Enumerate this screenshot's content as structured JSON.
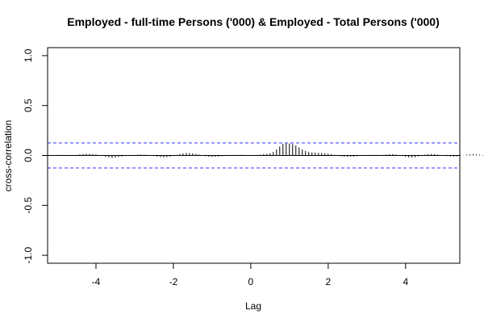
{
  "chart_data": {
    "type": "bar",
    "title": "Employed - full-time Persons ('000) & Employed - Total Persons ('000)",
    "xlabel": "Lag",
    "ylabel": "cross-correlation",
    "xlim": [
      -5.25,
      5.4
    ],
    "ylim": [
      -1.08,
      1.08
    ],
    "xticks": [
      -4,
      -2,
      0,
      2,
      4
    ],
    "xtick_labels": [
      "-4",
      "-2",
      "0",
      "2",
      "4"
    ],
    "yticks": [
      -1.0,
      -0.5,
      0.0,
      0.5,
      1.0
    ],
    "ytick_labels": [
      "-1.0",
      "-0.5",
      "0.0",
      "0.5",
      "1.0"
    ],
    "ci_level": 0.125,
    "ci_color": "#3333ff",
    "bar_color": "#000000",
    "grid": false,
    "lag_step": 0.0833,
    "lag_start": -5.0,
    "values": [
      0.005,
      0.006,
      0.005,
      0.004,
      0.003,
      0.003,
      0.005,
      0.01,
      0.014,
      0.017,
      0.016,
      0.014,
      0.01,
      0.004,
      -0.005,
      -0.013,
      -0.02,
      -0.024,
      -0.02,
      -0.015,
      -0.01,
      -0.005,
      0.0,
      0.003,
      0.005,
      0.008,
      0.01,
      0.008,
      0.005,
      0.0,
      -0.006,
      -0.012,
      -0.017,
      -0.02,
      -0.018,
      -0.013,
      -0.005,
      0.005,
      0.014,
      0.02,
      0.024,
      0.023,
      0.02,
      0.015,
      0.008,
      0.0,
      -0.008,
      -0.013,
      -0.015,
      -0.014,
      -0.012,
      -0.008,
      -0.005,
      -0.002,
      0.002,
      0.005,
      0.006,
      0.006,
      0.005,
      0.003,
      0.002,
      0.003,
      0.005,
      0.008,
      0.012,
      0.016,
      0.022,
      0.035,
      0.06,
      0.09,
      0.115,
      0.12,
      0.12,
      0.115,
      0.1,
      0.08,
      0.06,
      0.045,
      0.035,
      0.03,
      0.028,
      0.026,
      0.024,
      0.022,
      0.018,
      0.012,
      0.005,
      -0.002,
      -0.008,
      -0.012,
      -0.014,
      -0.014,
      -0.012,
      -0.008,
      -0.004,
      0.0,
      0.004,
      0.006,
      0.006,
      0.005,
      0.004,
      0.006,
      0.01,
      0.013,
      0.012,
      0.008,
      0.002,
      -0.006,
      -0.014,
      -0.02,
      -0.022,
      -0.018,
      -0.01,
      0.0,
      0.008,
      0.012,
      0.014,
      0.012,
      0.008,
      0.003,
      -0.002,
      -0.006,
      -0.01,
      -0.012,
      -0.01,
      -0.005,
      0.002,
      0.008,
      0.012,
      0.014,
      0.012,
      0.008,
      0.004,
      0.002,
      0.001,
      0.002,
      0.004,
      0.005,
      0.006,
      0.005,
      0.003
    ]
  }
}
